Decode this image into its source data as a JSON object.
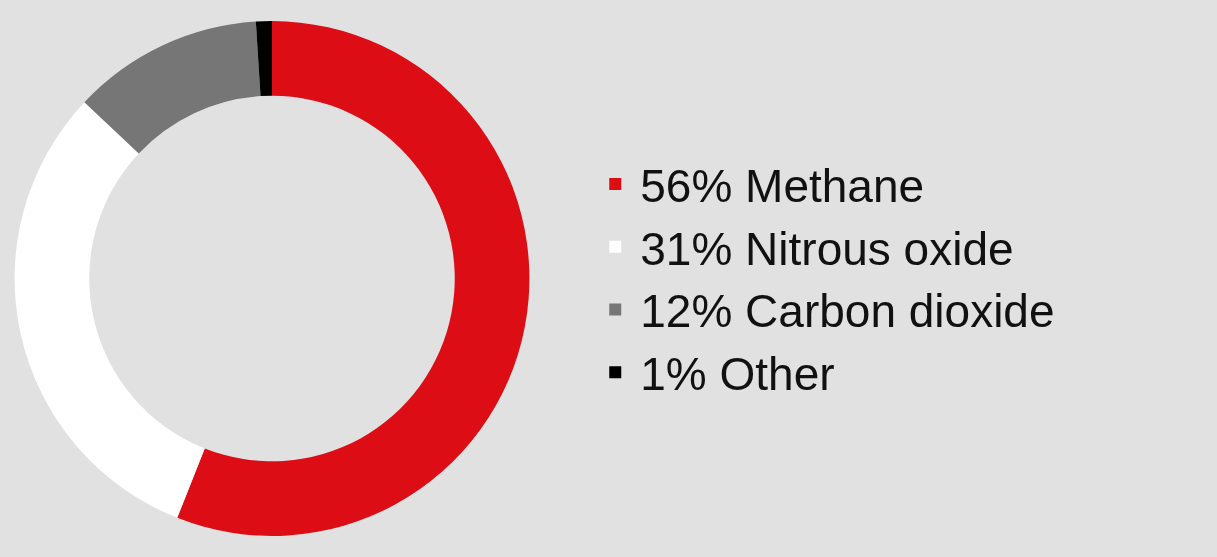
{
  "chart_data": {
    "type": "donut",
    "categories": [
      "Methane",
      "Nitrous oxide",
      "Carbon dioxide",
      "Other"
    ],
    "values": [
      56,
      31,
      12,
      1
    ],
    "value_labels": [
      "56%",
      "31%",
      "12%",
      "1%"
    ],
    "colors": [
      "#dc0d15",
      "#ffffff",
      "#767676",
      "#000000"
    ],
    "legend": "right"
  }
}
